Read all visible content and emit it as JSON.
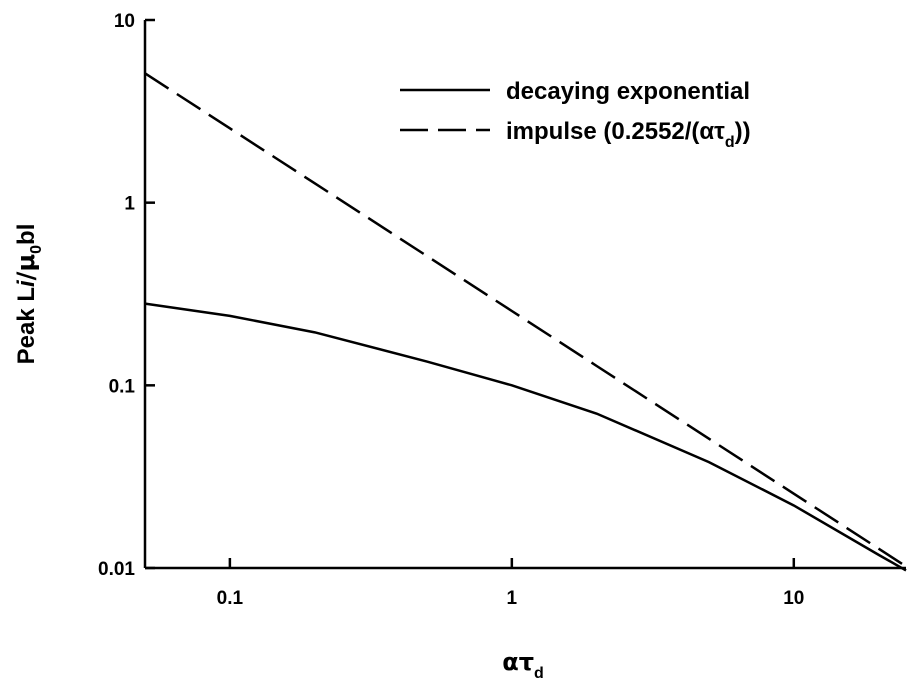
{
  "chart_data": {
    "type": "line",
    "xscale": "log",
    "yscale": "log",
    "xlim": [
      0.05,
      25
    ],
    "ylim": [
      0.01,
      10
    ],
    "grid": false,
    "legend_position": "top-right",
    "xlabel": {
      "main": "ατ",
      "sub": "d"
    },
    "ylabel": {
      "pre": "Peak L",
      "italic": "i",
      "mid": "/μ",
      "sub": "0",
      "post": "bl"
    },
    "x_ticks": [
      {
        "value": 0.1,
        "label": "0.1"
      },
      {
        "value": 1,
        "label": "1"
      },
      {
        "value": 10,
        "label": "10"
      }
    ],
    "y_ticks": [
      {
        "value": 0.01,
        "label": "0.01"
      },
      {
        "value": 0.1,
        "label": "0.1"
      },
      {
        "value": 1,
        "label": "1"
      },
      {
        "value": 10,
        "label": "10"
      }
    ],
    "series": [
      {
        "name": "decaying exponential",
        "style": "solid",
        "color": "#000000",
        "x": [
          0.05,
          0.1,
          0.2,
          0.5,
          1,
          2,
          5,
          10,
          20,
          25
        ],
        "y": [
          0.28,
          0.24,
          0.195,
          0.135,
          0.1,
          0.07,
          0.038,
          0.022,
          0.0118,
          0.0097
        ]
      },
      {
        "name_parts": {
          "pre": "impulse (0.2552/(ατ",
          "sub": "d",
          "post": "))"
        },
        "style": "dashed",
        "color": "#000000",
        "x": [
          0.05,
          0.1,
          0.2,
          0.5,
          1,
          2,
          5,
          10,
          20,
          25
        ],
        "y": [
          5.104,
          2.552,
          1.276,
          0.5104,
          0.2552,
          0.1276,
          0.05104,
          0.02552,
          0.01276,
          0.0102
        ]
      }
    ]
  }
}
